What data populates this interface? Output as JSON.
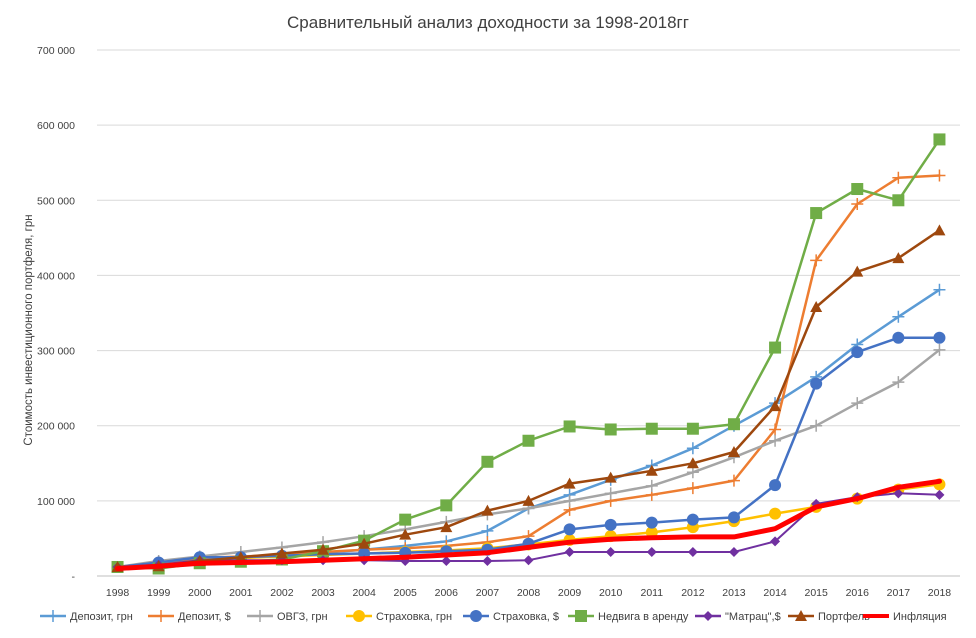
{
  "chart_data": {
    "type": "line",
    "title": "Сравнительный анализ доходности за 1998-2018гг",
    "ylabel": "Стоимость инвестиционного портфеля,  грн",
    "xlabel": "",
    "ylim": [
      0,
      700000
    ],
    "yticks": [
      0,
      100000,
      200000,
      300000,
      400000,
      500000,
      600000,
      700000
    ],
    "ytick_labels": [
      "-",
      "100 000",
      "200 000",
      "300 000",
      "400 000",
      "500 000",
      "600 000",
      "700 000"
    ],
    "grid": true,
    "legend_position": "bottom",
    "categories": [
      "1998",
      "1999",
      "2000",
      "2001",
      "2002",
      "2003",
      "2004",
      "2005",
      "2006",
      "2007",
      "2008",
      "2009",
      "2010",
      "2011",
      "2012",
      "2013",
      "2014",
      "2015",
      "2016",
      "2017",
      "2018"
    ],
    "series": [
      {
        "name": "Депозит, грн",
        "color": "#5b9bd5",
        "marker": "plus",
        "width": 2.5,
        "values": [
          12000,
          18000,
          22000,
          25000,
          28000,
          31000,
          35000,
          40000,
          46000,
          60000,
          90000,
          108000,
          128000,
          147000,
          170000,
          200000,
          230000,
          265000,
          308000,
          345000,
          381000
        ]
      },
      {
        "name": "Депозит, $",
        "color": "#ed7d31",
        "marker": "plus",
        "width": 2.5,
        "values": [
          12000,
          15000,
          24000,
          26000,
          28000,
          32000,
          35000,
          37000,
          40000,
          45000,
          53000,
          88000,
          100000,
          108000,
          117000,
          127000,
          195000,
          420000,
          495000,
          530000,
          533000
        ]
      },
      {
        "name": "ОВГЗ, грн",
        "color": "#a5a5a5",
        "marker": "plus",
        "width": 2.5,
        "values": [
          12000,
          20000,
          26000,
          32000,
          38000,
          45000,
          53000,
          62000,
          72000,
          82000,
          90000,
          100000,
          110000,
          120000,
          138000,
          158000,
          180000,
          200000,
          230000,
          258000,
          301000
        ]
      },
      {
        "name": "Страховка, грн",
        "color": "#ffc000",
        "marker": "circle",
        "width": 2.5,
        "values": [
          12000,
          15000,
          20000,
          24000,
          26000,
          28000,
          30000,
          32000,
          34000,
          37000,
          42000,
          48000,
          53000,
          58000,
          65000,
          73000,
          83000,
          92000,
          103000,
          115000,
          122000
        ]
      },
      {
        "name": "Страховка, $",
        "color": "#4472c4",
        "marker": "circle",
        "width": 2.5,
        "values": [
          12000,
          18000,
          25000,
          25000,
          27000,
          29000,
          30000,
          31000,
          33000,
          35000,
          43000,
          62000,
          68000,
          71000,
          75000,
          78000,
          121000,
          256000,
          298000,
          317000,
          317000
        ]
      },
      {
        "name": "Недвига в аренду",
        "color": "#70ad47",
        "marker": "square",
        "width": 2.5,
        "values": [
          12000,
          10000,
          17000,
          19000,
          22000,
          33000,
          47000,
          75000,
          94000,
          152000,
          180000,
          199000,
          195000,
          196000,
          196000,
          202000,
          304000,
          483000,
          515000,
          500000,
          581000
        ]
      },
      {
        "name": "\"Матрац\",$",
        "color": "#7030a0",
        "marker": "diamond",
        "width": 2,
        "values": [
          12000,
          15000,
          21000,
          21000,
          21000,
          21000,
          21000,
          20000,
          20000,
          20000,
          21000,
          32000,
          32000,
          32000,
          32000,
          32000,
          46000,
          96000,
          105000,
          110000,
          108000
        ]
      },
      {
        "name": "Портфель",
        "color": "#9e480e",
        "marker": "triangle",
        "width": 2.5,
        "values": [
          12000,
          13000,
          20000,
          25000,
          30000,
          35000,
          43000,
          55000,
          65000,
          87000,
          100000,
          123000,
          131000,
          140000,
          150000,
          165000,
          226000,
          358000,
          405000,
          423000,
          460000
        ]
      },
      {
        "name": "Инфляция",
        "color": "#ff0000",
        "marker": "none",
        "width": 5,
        "values": [
          10000,
          13000,
          17000,
          18000,
          19000,
          21000,
          23000,
          25000,
          28000,
          31000,
          38000,
          45000,
          49000,
          51000,
          52000,
          52000,
          63000,
          92000,
          103000,
          118000,
          126000
        ]
      }
    ]
  }
}
